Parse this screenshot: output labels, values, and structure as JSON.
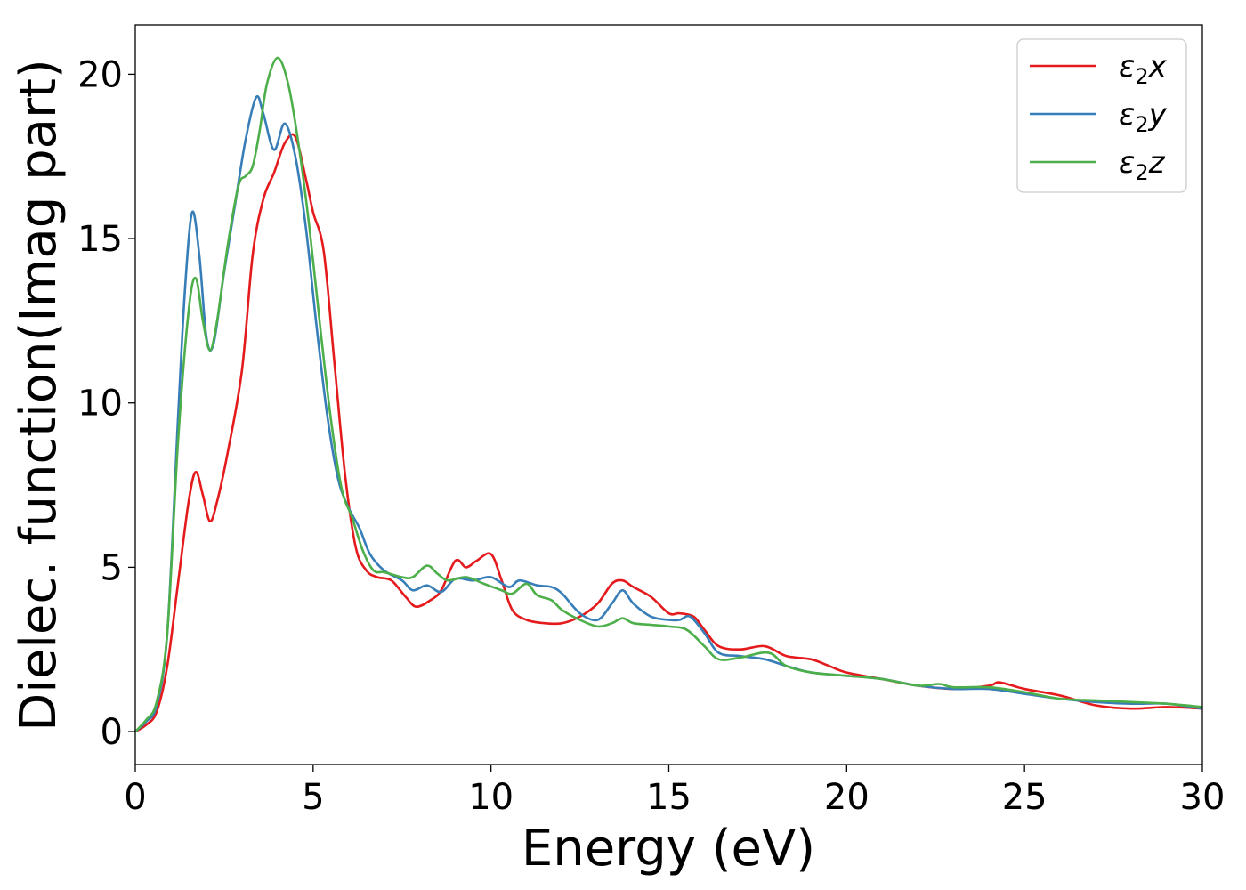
{
  "chart_data": {
    "type": "line",
    "xlabel": "Energy (eV)",
    "ylabel": "Dielec. function(Imag part)",
    "xlim": [
      0,
      30
    ],
    "ylim": [
      -1,
      21.5
    ],
    "xticks": [
      0,
      5,
      10,
      15,
      20,
      25,
      30
    ],
    "yticks": [
      0,
      5,
      10,
      15,
      20
    ],
    "grid": false,
    "legend_position": "top-right",
    "series": [
      {
        "name": "ε2x",
        "base": "ε",
        "sub": "2",
        "suffix": "x",
        "color": "#e41a1c",
        "x": [
          0,
          0.3,
          0.6,
          0.9,
          1.2,
          1.5,
          1.7,
          1.9,
          2.1,
          2.3,
          2.6,
          3.0,
          3.3,
          3.6,
          3.9,
          4.2,
          4.5,
          4.8,
          5.0,
          5.3,
          5.6,
          5.9,
          6.2,
          6.5,
          6.8,
          7.2,
          7.6,
          7.9,
          8.3,
          8.6,
          9.0,
          9.3,
          9.6,
          10.0,
          10.3,
          10.6,
          11.0,
          11.5,
          12.0,
          12.5,
          13.0,
          13.4,
          13.7,
          14.0,
          14.5,
          15.0,
          15.3,
          15.7,
          16.0,
          16.4,
          17.0,
          17.7,
          18.3,
          19.0,
          19.5,
          20.0,
          21.0,
          22.0,
          23.0,
          24.0,
          24.3,
          25.0,
          26.0,
          27.0,
          28.0,
          29.0,
          30.0
        ],
        "y": [
          0,
          0.2,
          0.6,
          2.0,
          4.5,
          7.0,
          7.9,
          7.2,
          6.4,
          7.0,
          8.5,
          11.0,
          14.5,
          16.2,
          17.0,
          17.9,
          18.1,
          16.8,
          15.8,
          14.6,
          11.2,
          7.8,
          5.6,
          4.9,
          4.7,
          4.6,
          4.1,
          3.8,
          4.0,
          4.3,
          5.2,
          5.0,
          5.2,
          5.4,
          4.6,
          3.7,
          3.4,
          3.3,
          3.3,
          3.5,
          3.9,
          4.5,
          4.6,
          4.4,
          4.1,
          3.6,
          3.6,
          3.5,
          3.1,
          2.6,
          2.5,
          2.6,
          2.3,
          2.2,
          2.0,
          1.8,
          1.6,
          1.4,
          1.3,
          1.4,
          1.5,
          1.3,
          1.1,
          0.8,
          0.7,
          0.75,
          0.7
        ]
      },
      {
        "name": "ε2y",
        "base": "ε",
        "sub": "2",
        "suffix": "y",
        "color": "#377eb8",
        "x": [
          0,
          0.3,
          0.6,
          0.9,
          1.2,
          1.4,
          1.6,
          1.8,
          2.0,
          2.2,
          2.5,
          2.8,
          3.1,
          3.4,
          3.6,
          3.9,
          4.2,
          4.5,
          4.8,
          5.1,
          5.4,
          5.7,
          6.0,
          6.3,
          6.6,
          7.0,
          7.5,
          7.8,
          8.2,
          8.6,
          9.0,
          9.5,
          10.0,
          10.5,
          10.8,
          11.3,
          11.7,
          12.0,
          12.5,
          13.0,
          13.4,
          13.7,
          14.0,
          14.5,
          15.0,
          15.3,
          15.6,
          16.0,
          16.4,
          17.0,
          17.7,
          18.3,
          19.0,
          20.0,
          21.0,
          22.0,
          23.0,
          24.0,
          25.0,
          26.0,
          27.0,
          28.0,
          29.0,
          30.0
        ],
        "y": [
          0,
          0.3,
          0.8,
          3.0,
          9.5,
          13.5,
          15.8,
          14.5,
          12.0,
          11.8,
          14.0,
          16.0,
          18.0,
          19.3,
          18.8,
          17.7,
          18.5,
          17.5,
          15.3,
          12.3,
          9.6,
          7.7,
          6.8,
          6.2,
          5.4,
          4.9,
          4.6,
          4.3,
          4.45,
          4.25,
          4.65,
          4.6,
          4.7,
          4.4,
          4.6,
          4.45,
          4.4,
          4.2,
          3.6,
          3.4,
          3.9,
          4.3,
          3.9,
          3.5,
          3.4,
          3.4,
          3.5,
          3.0,
          2.4,
          2.3,
          2.2,
          2.0,
          1.8,
          1.7,
          1.6,
          1.4,
          1.3,
          1.3,
          1.15,
          1.0,
          0.9,
          0.85,
          0.85,
          0.7
        ]
      },
      {
        "name": "ε2z",
        "base": "ε",
        "sub": "2",
        "suffix": "z",
        "color": "#4daf4a",
        "x": [
          0,
          0.3,
          0.6,
          0.9,
          1.2,
          1.5,
          1.7,
          1.9,
          2.1,
          2.3,
          2.6,
          2.9,
          3.1,
          3.3,
          3.5,
          3.7,
          4.0,
          4.3,
          4.6,
          4.9,
          5.2,
          5.5,
          5.8,
          6.1,
          6.4,
          6.7,
          7.0,
          7.5,
          7.8,
          8.2,
          8.5,
          8.8,
          9.3,
          9.8,
          10.3,
          10.6,
          11.0,
          11.3,
          11.7,
          12.0,
          12.5,
          13.0,
          13.4,
          13.7,
          14.0,
          14.5,
          15.0,
          15.5,
          16.0,
          16.4,
          17.0,
          17.8,
          18.3,
          19.0,
          20.0,
          21.0,
          22.0,
          22.6,
          23.0,
          24.0,
          25.0,
          26.0,
          27.0,
          28.0,
          29.0,
          30.0
        ],
        "y": [
          0,
          0.35,
          0.9,
          3.0,
          8.8,
          12.8,
          13.8,
          12.5,
          11.6,
          12.5,
          14.8,
          16.6,
          16.9,
          17.2,
          18.3,
          19.7,
          20.5,
          19.7,
          17.8,
          15.3,
          12.3,
          9.5,
          7.4,
          6.5,
          5.5,
          4.9,
          4.85,
          4.7,
          4.7,
          5.05,
          4.8,
          4.6,
          4.7,
          4.5,
          4.3,
          4.2,
          4.5,
          4.15,
          4.0,
          3.7,
          3.4,
          3.2,
          3.3,
          3.45,
          3.3,
          3.25,
          3.2,
          3.1,
          2.6,
          2.2,
          2.25,
          2.4,
          2.0,
          1.8,
          1.7,
          1.6,
          1.4,
          1.45,
          1.35,
          1.35,
          1.2,
          1.0,
          0.95,
          0.9,
          0.85,
          0.75
        ]
      }
    ]
  }
}
